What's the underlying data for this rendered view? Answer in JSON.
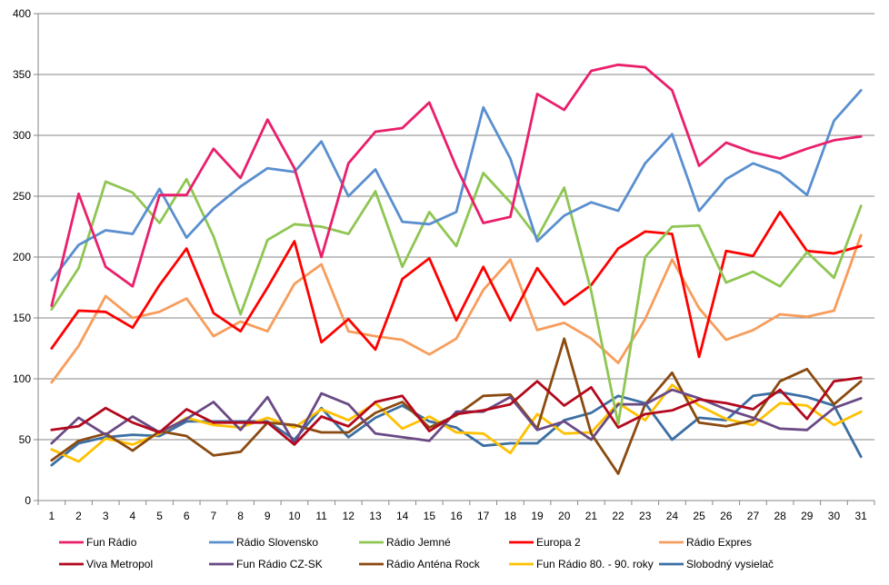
{
  "chart_data": {
    "type": "line",
    "title": "",
    "xlabel": "",
    "ylabel": "",
    "ylim": [
      0,
      400
    ],
    "yticks": [
      0,
      50,
      100,
      150,
      200,
      250,
      300,
      350,
      400
    ],
    "grid": "horizontal",
    "legend_position": "bottom",
    "categories": [
      "1",
      "2",
      "3",
      "4",
      "5",
      "6",
      "7",
      "8",
      "9",
      "10",
      "11",
      "12",
      "13",
      "14",
      "15",
      "16",
      "17",
      "18",
      "19",
      "20",
      "21",
      "22",
      "23",
      "24",
      "25",
      "26",
      "27",
      "28",
      "29",
      "30",
      "31"
    ],
    "series": [
      {
        "name": "Fun Rádio",
        "color": "#ea1f6c",
        "values": [
          160,
          252,
          192,
          176,
          251,
          251,
          289,
          265,
          313,
          273,
          200,
          277,
          303,
          306,
          327,
          274,
          228,
          233,
          334,
          321,
          353,
          358,
          356,
          337,
          275,
          294,
          286,
          281,
          289,
          296,
          299
        ]
      },
      {
        "name": "Rádio Slovensko",
        "color": "#5a8fcf",
        "values": [
          181,
          210,
          222,
          219,
          256,
          216,
          240,
          258,
          273,
          270,
          295,
          250,
          272,
          229,
          227,
          237,
          323,
          281,
          213,
          234,
          245,
          238,
          277,
          301,
          238,
          264,
          277,
          269,
          251,
          312,
          337
        ]
      },
      {
        "name": "Rádio Jemné",
        "color": "#8fc653",
        "values": [
          157,
          191,
          262,
          253,
          228,
          264,
          217,
          153,
          214,
          227,
          225,
          219,
          254,
          192,
          237,
          209,
          269,
          245,
          216,
          257,
          172,
          63,
          200,
          225,
          226,
          179,
          188,
          176,
          204,
          183,
          242
        ]
      },
      {
        "name": "Europa 2",
        "color": "#ff0000",
        "values": [
          125,
          156,
          155,
          142,
          177,
          207,
          154,
          139,
          175,
          213,
          130,
          149,
          124,
          182,
          199,
          148,
          192,
          148,
          191,
          161,
          177,
          207,
          221,
          219,
          118,
          205,
          201,
          237,
          205,
          203,
          209
        ]
      },
      {
        "name": "Rádio Expres",
        "color": "#f79d5c",
        "values": [
          97,
          127,
          168,
          150,
          155,
          166,
          135,
          147,
          139,
          178,
          194,
          139,
          135,
          132,
          120,
          133,
          173,
          198,
          140,
          146,
          133,
          113,
          149,
          198,
          158,
          132,
          140,
          153,
          151,
          156,
          218
        ]
      },
      {
        "name": "Viva Metropol",
        "color": "#b3081d",
        "values": [
          58,
          61,
          76,
          64,
          56,
          75,
          64,
          64,
          64,
          46,
          69,
          61,
          81,
          86,
          57,
          71,
          74,
          79,
          98,
          78,
          93,
          60,
          71,
          74,
          83,
          80,
          75,
          91,
          67,
          98,
          101
        ]
      },
      {
        "name": "Fun Rádio CZ-SK",
        "color": "#6a4a85",
        "values": [
          47,
          68,
          54,
          69,
          56,
          67,
          81,
          58,
          85,
          47,
          88,
          79,
          55,
          52,
          49,
          73,
          73,
          85,
          58,
          65,
          50,
          79,
          79,
          91,
          84,
          75,
          68,
          59,
          58,
          76,
          84
        ]
      },
      {
        "name": "Rádio Anténa Rock",
        "color": "#8b4a10",
        "values": [
          33,
          49,
          55,
          41,
          57,
          53,
          37,
          40,
          64,
          62,
          56,
          56,
          72,
          81,
          60,
          70,
          86,
          87,
          59,
          133,
          55,
          22,
          79,
          105,
          64,
          61,
          66,
          98,
          108,
          79,
          98
        ]
      },
      {
        "name": "Fun Rádio 80. - 90. roky",
        "color": "#ffc000",
        "values": [
          42,
          32,
          51,
          46,
          55,
          68,
          62,
          60,
          68,
          60,
          75,
          66,
          80,
          59,
          69,
          56,
          55,
          39,
          71,
          55,
          56,
          80,
          66,
          95,
          78,
          67,
          62,
          80,
          78,
          62,
          73
        ]
      },
      {
        "name": "Slobodný vysielač",
        "color": "#3b6fa3",
        "values": [
          29,
          47,
          52,
          54,
          53,
          65,
          65,
          65,
          65,
          50,
          76,
          52,
          68,
          78,
          65,
          60,
          45,
          47,
          47,
          66,
          72,
          86,
          80,
          50,
          68,
          66,
          86,
          89,
          85,
          78,
          36
        ]
      }
    ]
  }
}
